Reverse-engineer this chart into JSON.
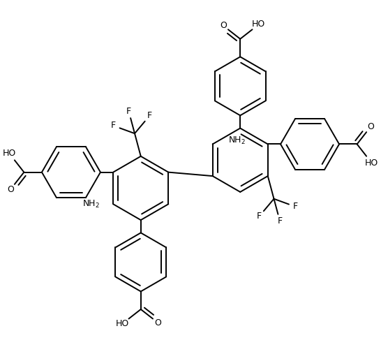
{
  "figw": 5.46,
  "figh": 5.17,
  "dpi": 100,
  "lw": 1.4,
  "dbl_off": 0.075,
  "dbl_shrink": 0.12,
  "fs": 9.0,
  "r_central": 0.5,
  "r_periph": 0.46,
  "xlim": [
    -2.8,
    2.8
  ],
  "ylim": [
    -2.9,
    2.7
  ]
}
